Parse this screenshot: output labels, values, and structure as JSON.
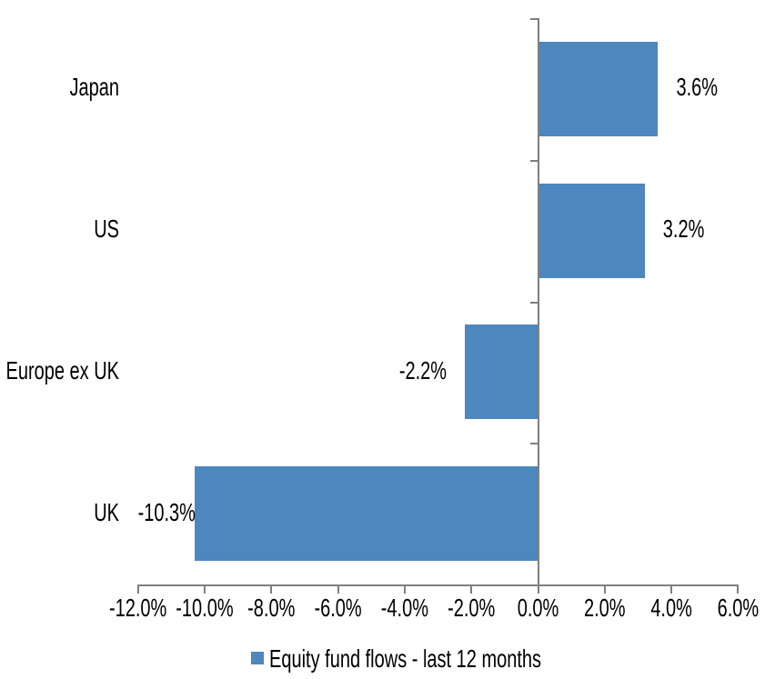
{
  "chart_data": {
    "type": "bar",
    "orientation": "horizontal",
    "categories": [
      "Japan",
      "US",
      "Europe ex UK",
      "UK"
    ],
    "series": [
      {
        "name": "Equity fund flows - last 12 months",
        "values": [
          3.6,
          3.2,
          -2.2,
          -10.3
        ]
      }
    ],
    "data_labels": [
      "3.6%",
      "3.2%",
      "-2.2%",
      "-10.3%"
    ],
    "xlim": [
      -12,
      6
    ],
    "x_ticks": [
      -12,
      -10,
      -8,
      -6,
      -4,
      -2,
      0,
      2,
      4,
      6
    ],
    "x_tick_labels": [
      "-12.0%",
      "-10.0%",
      "-8.0%",
      "-6.0%",
      "-4.0%",
      "-2.0%",
      "0.0%",
      "2.0%",
      "4.0%",
      "6.0%"
    ],
    "grid": false,
    "legend": {
      "position": "bottom",
      "label": "Equity fund flows - last 12 months",
      "swatch_color": "#4E86BE"
    },
    "colors": {
      "bar": "#4E86BE",
      "axis": "#7F7F7F",
      "text": "#000000",
      "background": "#FFFFFF"
    }
  }
}
